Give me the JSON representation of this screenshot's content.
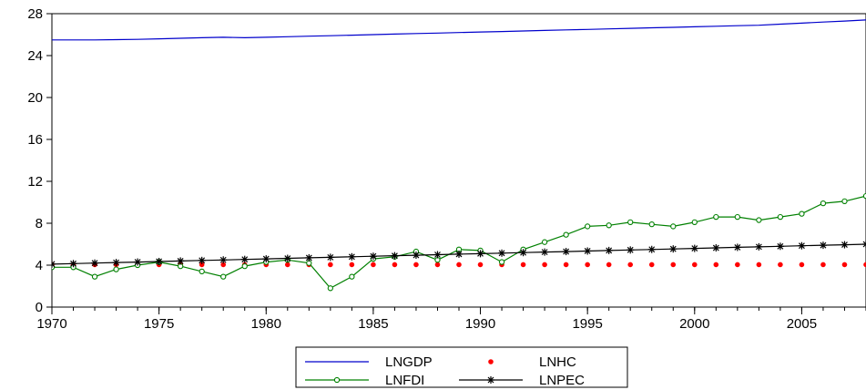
{
  "chart_data": {
    "type": "line",
    "title": "",
    "xlabel": "",
    "ylabel": "",
    "xlim": [
      1970,
      2008
    ],
    "ylim": [
      0,
      28
    ],
    "x_ticks": [
      "1970",
      "1975",
      "1980",
      "1985",
      "1990",
      "1995",
      "2000",
      "2005"
    ],
    "y_ticks": [
      "0",
      "4",
      "8",
      "12",
      "16",
      "20",
      "24",
      "28"
    ],
    "grid": false,
    "legend_position": "bottom-center",
    "x": [
      1970,
      1971,
      1972,
      1973,
      1974,
      1975,
      1976,
      1977,
      1978,
      1979,
      1980,
      1981,
      1982,
      1983,
      1984,
      1985,
      1986,
      1987,
      1988,
      1989,
      1990,
      1991,
      1992,
      1993,
      1994,
      1995,
      1996,
      1997,
      1998,
      1999,
      2000,
      2001,
      2002,
      2003,
      2004,
      2005,
      2006,
      2007,
      2008
    ],
    "series": [
      {
        "name": "LNGDP",
        "color": "#0000cc",
        "style": "line",
        "values": [
          25.5,
          25.5,
          25.5,
          25.52,
          25.55,
          25.6,
          25.65,
          25.7,
          25.75,
          25.7,
          25.75,
          25.8,
          25.85,
          25.9,
          25.95,
          26.0,
          26.05,
          26.1,
          26.15,
          26.2,
          26.25,
          26.3,
          26.35,
          26.4,
          26.45,
          26.5,
          26.55,
          26.6,
          26.65,
          26.7,
          26.75,
          26.8,
          26.85,
          26.9,
          27.0,
          27.1,
          27.2,
          27.3,
          27.4
        ]
      },
      {
        "name": "LNHC",
        "color": "#ff0000",
        "style": "dots",
        "values": [
          4.05,
          4.05,
          4.05,
          4.05,
          4.05,
          4.05,
          4.05,
          4.05,
          4.05,
          4.05,
          4.05,
          4.05,
          4.05,
          4.05,
          4.05,
          4.05,
          4.05,
          4.05,
          4.05,
          4.05,
          4.05,
          4.05,
          4.05,
          4.05,
          4.05,
          4.05,
          4.05,
          4.05,
          4.05,
          4.05,
          4.05,
          4.05,
          4.05,
          4.05,
          4.05,
          4.05,
          4.05,
          4.05,
          4.05
        ]
      },
      {
        "name": "LNFDI",
        "color": "#008000",
        "style": "line-circles",
        "values": [
          3.8,
          3.8,
          2.9,
          3.6,
          4.0,
          4.3,
          3.9,
          3.4,
          2.9,
          3.9,
          4.3,
          4.5,
          4.2,
          1.8,
          2.9,
          4.6,
          4.8,
          5.3,
          4.5,
          5.5,
          5.4,
          4.3,
          5.5,
          6.2,
          6.9,
          7.7,
          7.8,
          8.1,
          7.9,
          7.7,
          8.1,
          8.6,
          8.6,
          8.3,
          8.6,
          8.9,
          9.9,
          10.1,
          10.6
        ]
      },
      {
        "name": "LNPEC",
        "color": "#000000",
        "style": "line-stars",
        "values": [
          4.1,
          4.15,
          4.2,
          4.25,
          4.3,
          4.35,
          4.4,
          4.45,
          4.5,
          4.55,
          4.6,
          4.65,
          4.7,
          4.75,
          4.8,
          4.85,
          4.9,
          4.95,
          5.0,
          5.05,
          5.1,
          5.15,
          5.2,
          5.25,
          5.3,
          5.35,
          5.4,
          5.45,
          5.5,
          5.55,
          5.6,
          5.65,
          5.7,
          5.75,
          5.8,
          5.85,
          5.9,
          5.95,
          6.0
        ]
      }
    ]
  }
}
